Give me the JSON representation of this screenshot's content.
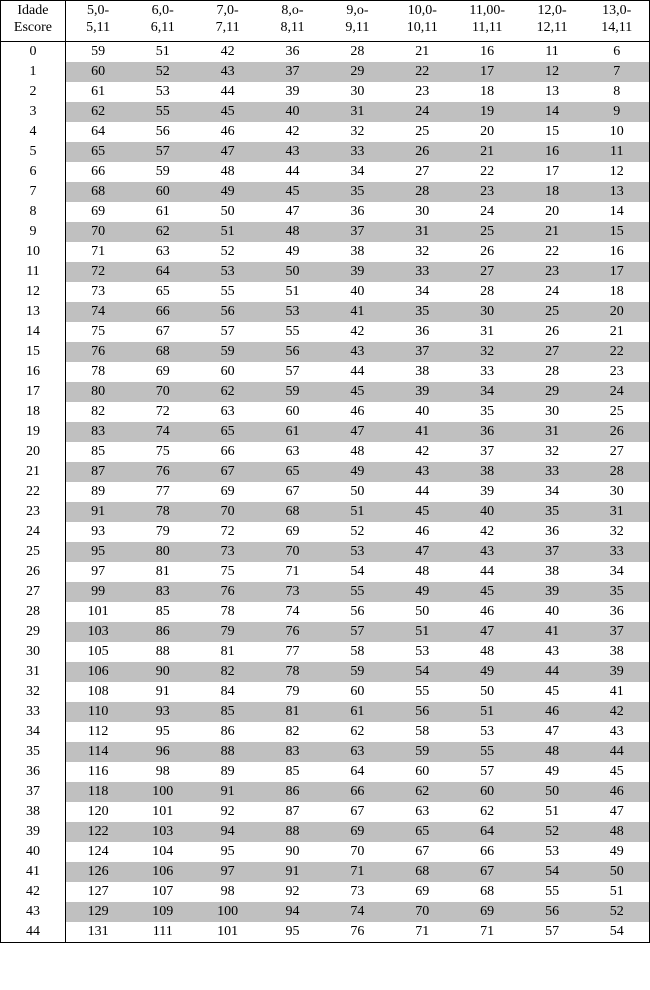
{
  "table": {
    "type": "table",
    "background_color": "#ffffff",
    "alt_row_color": "#c0c0c0",
    "border_color": "#000000",
    "font_family": "Times New Roman",
    "font_size_pt": 11,
    "escore_header_top": "Idade",
    "escore_header_bottom": "Escore",
    "cols": [
      {
        "top": "5,0-",
        "bottom": "5,11"
      },
      {
        "top": "6,0-",
        "bottom": "6,11"
      },
      {
        "top": "7,0-",
        "bottom": "7,11"
      },
      {
        "top": "8,o-",
        "bottom": "8,11"
      },
      {
        "top": "9,o-",
        "bottom": "9,11"
      },
      {
        "top": "10,0-",
        "bottom": "10,11"
      },
      {
        "top": "11,00-",
        "bottom": "11,11"
      },
      {
        "top": "12,0-",
        "bottom": "12,11"
      },
      {
        "top": "13,0-",
        "bottom": "14,11"
      }
    ],
    "rows": [
      {
        "escore": "0",
        "v": [
          "59",
          "51",
          "42",
          "36",
          "28",
          "21",
          "16",
          "11",
          "6"
        ]
      },
      {
        "escore": "1",
        "v": [
          "60",
          "52",
          "43",
          "37",
          "29",
          "22",
          "17",
          "12",
          "7"
        ]
      },
      {
        "escore": "2",
        "v": [
          "61",
          "53",
          "44",
          "39",
          "30",
          "23",
          "18",
          "13",
          "8"
        ]
      },
      {
        "escore": "3",
        "v": [
          "62",
          "55",
          "45",
          "40",
          "31",
          "24",
          "19",
          "14",
          "9"
        ]
      },
      {
        "escore": "4",
        "v": [
          "64",
          "56",
          "46",
          "42",
          "32",
          "25",
          "20",
          "15",
          "10"
        ]
      },
      {
        "escore": "5",
        "v": [
          "65",
          "57",
          "47",
          "43",
          "33",
          "26",
          "21",
          "16",
          "11"
        ]
      },
      {
        "escore": "6",
        "v": [
          "66",
          "59",
          "48",
          "44",
          "34",
          "27",
          "22",
          "17",
          "12"
        ]
      },
      {
        "escore": "7",
        "v": [
          "68",
          "60",
          "49",
          "45",
          "35",
          "28",
          "23",
          "18",
          "13"
        ]
      },
      {
        "escore": "8",
        "v": [
          "69",
          "61",
          "50",
          "47",
          "36",
          "30",
          "24",
          "20",
          "14"
        ]
      },
      {
        "escore": "9",
        "v": [
          "70",
          "62",
          "51",
          "48",
          "37",
          "31",
          "25",
          "21",
          "15"
        ]
      },
      {
        "escore": "10",
        "v": [
          "71",
          "63",
          "52",
          "49",
          "38",
          "32",
          "26",
          "22",
          "16"
        ]
      },
      {
        "escore": "11",
        "v": [
          "72",
          "64",
          "53",
          "50",
          "39",
          "33",
          "27",
          "23",
          "17"
        ]
      },
      {
        "escore": "12",
        "v": [
          "73",
          "65",
          "55",
          "51",
          "40",
          "34",
          "28",
          "24",
          "18"
        ]
      },
      {
        "escore": "13",
        "v": [
          "74",
          "66",
          "56",
          "53",
          "41",
          "35",
          "30",
          "25",
          "20"
        ]
      },
      {
        "escore": "14",
        "v": [
          "75",
          "67",
          "57",
          "55",
          "42",
          "36",
          "31",
          "26",
          "21"
        ]
      },
      {
        "escore": "15",
        "v": [
          "76",
          "68",
          "59",
          "56",
          "43",
          "37",
          "32",
          "27",
          "22"
        ]
      },
      {
        "escore": "16",
        "v": [
          "78",
          "69",
          "60",
          "57",
          "44",
          "38",
          "33",
          "28",
          "23"
        ]
      },
      {
        "escore": "17",
        "v": [
          "80",
          "70",
          "62",
          "59",
          "45",
          "39",
          "34",
          "29",
          "24"
        ]
      },
      {
        "escore": "18",
        "v": [
          "82",
          "72",
          "63",
          "60",
          "46",
          "40",
          "35",
          "30",
          "25"
        ]
      },
      {
        "escore": "19",
        "v": [
          "83",
          "74",
          "65",
          "61",
          "47",
          "41",
          "36",
          "31",
          "26"
        ]
      },
      {
        "escore": "20",
        "v": [
          "85",
          "75",
          "66",
          "63",
          "48",
          "42",
          "37",
          "32",
          "27"
        ]
      },
      {
        "escore": "21",
        "v": [
          "87",
          "76",
          "67",
          "65",
          "49",
          "43",
          "38",
          "33",
          "28"
        ]
      },
      {
        "escore": "22",
        "v": [
          "89",
          "77",
          "69",
          "67",
          "50",
          "44",
          "39",
          "34",
          "30"
        ]
      },
      {
        "escore": "23",
        "v": [
          "91",
          "78",
          "70",
          "68",
          "51",
          "45",
          "40",
          "35",
          "31"
        ]
      },
      {
        "escore": "24",
        "v": [
          "93",
          "79",
          "72",
          "69",
          "52",
          "46",
          "42",
          "36",
          "32"
        ]
      },
      {
        "escore": "25",
        "v": [
          "95",
          "80",
          "73",
          "70",
          "53",
          "47",
          "43",
          "37",
          "33"
        ]
      },
      {
        "escore": "26",
        "v": [
          "97",
          "81",
          "75",
          "71",
          "54",
          "48",
          "44",
          "38",
          "34"
        ]
      },
      {
        "escore": "27",
        "v": [
          "99",
          "83",
          "76",
          "73",
          "55",
          "49",
          "45",
          "39",
          "35"
        ]
      },
      {
        "escore": "28",
        "v": [
          "101",
          "85",
          "78",
          "74",
          "56",
          "50",
          "46",
          "40",
          "36"
        ]
      },
      {
        "escore": "29",
        "v": [
          "103",
          "86",
          "79",
          "76",
          "57",
          "51",
          "47",
          "41",
          "37"
        ]
      },
      {
        "escore": "30",
        "v": [
          "105",
          "88",
          "81",
          "77",
          "58",
          "53",
          "48",
          "43",
          "38"
        ]
      },
      {
        "escore": "31",
        "v": [
          "106",
          "90",
          "82",
          "78",
          "59",
          "54",
          "49",
          "44",
          "39"
        ]
      },
      {
        "escore": "32",
        "v": [
          "108",
          "91",
          "84",
          "79",
          "60",
          "55",
          "50",
          "45",
          "41"
        ]
      },
      {
        "escore": "33",
        "v": [
          "110",
          "93",
          "85",
          "81",
          "61",
          "56",
          "51",
          "46",
          "42"
        ]
      },
      {
        "escore": "34",
        "v": [
          "112",
          "95",
          "86",
          "82",
          "62",
          "58",
          "53",
          "47",
          "43"
        ]
      },
      {
        "escore": "35",
        "v": [
          "114",
          "96",
          "88",
          "83",
          "63",
          "59",
          "55",
          "48",
          "44"
        ]
      },
      {
        "escore": "36",
        "v": [
          "116",
          "98",
          "89",
          "85",
          "64",
          "60",
          "57",
          "49",
          "45"
        ]
      },
      {
        "escore": "37",
        "v": [
          "118",
          "100",
          "91",
          "86",
          "66",
          "62",
          "60",
          "50",
          "46"
        ]
      },
      {
        "escore": "38",
        "v": [
          "120",
          "101",
          "92",
          "87",
          "67",
          "63",
          "62",
          "51",
          "47"
        ]
      },
      {
        "escore": "39",
        "v": [
          "122",
          "103",
          "94",
          "88",
          "69",
          "65",
          "64",
          "52",
          "48"
        ]
      },
      {
        "escore": "40",
        "v": [
          "124",
          "104",
          "95",
          "90",
          "70",
          "67",
          "66",
          "53",
          "49"
        ]
      },
      {
        "escore": "41",
        "v": [
          "126",
          "106",
          "97",
          "91",
          "71",
          "68",
          "67",
          "54",
          "50"
        ]
      },
      {
        "escore": "42",
        "v": [
          "127",
          "107",
          "98",
          "92",
          "73",
          "69",
          "68",
          "55",
          "51"
        ]
      },
      {
        "escore": "43",
        "v": [
          "129",
          "109",
          "100",
          "94",
          "74",
          "70",
          "69",
          "56",
          "52"
        ]
      },
      {
        "escore": "44",
        "v": [
          "131",
          "111",
          "101",
          "95",
          "76",
          "71",
          "71",
          "57",
          "54"
        ]
      }
    ]
  }
}
